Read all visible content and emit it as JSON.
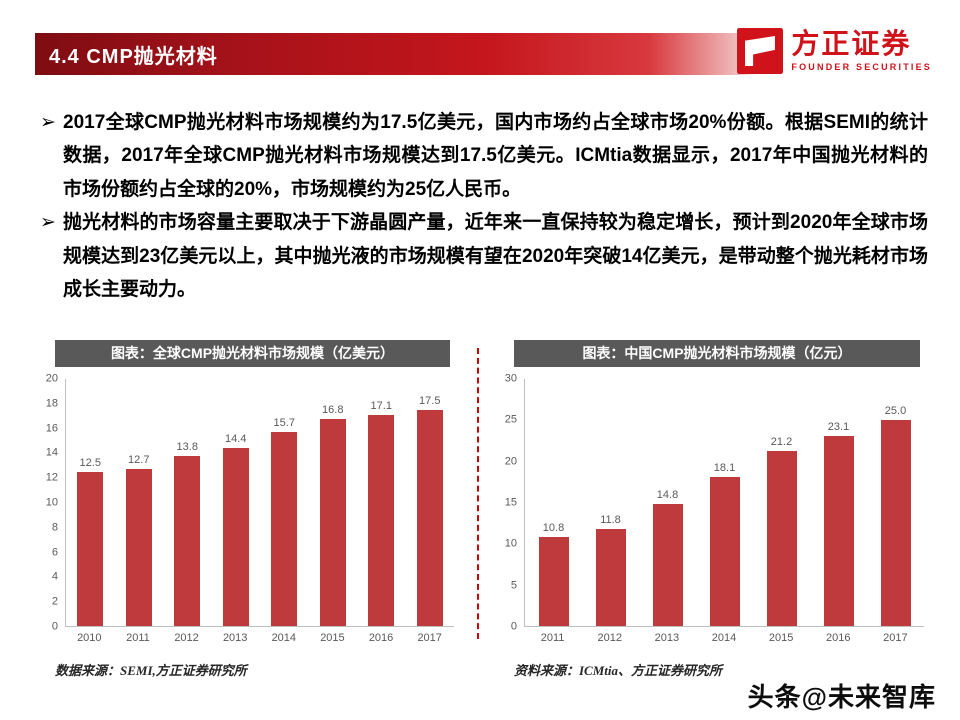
{
  "header": {
    "section_title": "4.4 CMP抛光材料"
  },
  "logo": {
    "brand_cn": "方正证券",
    "brand_en": "FOUNDER SECURITIES"
  },
  "bullet_marker": "➢",
  "bullets": [
    "2017全球CMP抛光材料市场规模约为17.5亿美元，国内市场约占全球市场20%份额。根据SEMI的统计数据，2017年全球CMP抛光材料市场规模达到17.5亿美元。ICMtia数据显示，2017年中国抛光材料的市场份额约占全球的20%，市场规模约为25亿人民币。",
    "抛光材料的市场容量主要取决于下游晶圆产量，近年来一直保持较为稳定增长，预计到2020年全球市场规模达到23亿美元以上，其中抛光液的市场规模有望在2020年突破14亿美元，是带动整个抛光耗材市场成长主要动力。"
  ],
  "chart_data": [
    {
      "type": "bar",
      "title": "图表：全球CMP抛光材料市场规模（亿美元）",
      "categories": [
        "2010",
        "2011",
        "2012",
        "2013",
        "2014",
        "2015",
        "2016",
        "2017"
      ],
      "values": [
        12.5,
        12.7,
        13.8,
        14.4,
        15.7,
        16.8,
        17.1,
        17.5
      ],
      "ylim": [
        0,
        20
      ],
      "ytick_step": 2,
      "grid": false,
      "legend": "none",
      "source": "数据来源：SEMI,方正证券研究所"
    },
    {
      "type": "bar",
      "title": "图表：中国CMP抛光材料市场规模（亿元）",
      "categories": [
        "2011",
        "2012",
        "2013",
        "2014",
        "2015",
        "2016",
        "2017"
      ],
      "values": [
        10.8,
        11.8,
        14.8,
        18.1,
        21.2,
        23.1,
        25.0
      ],
      "ylim": [
        0,
        30
      ],
      "ytick_step": 5,
      "grid": false,
      "legend": "none",
      "source": "资料来源：ICMtia、方正证券研究所"
    }
  ],
  "watermark": "头条@未来智库",
  "colors": {
    "bar": "#bf3a3c",
    "banner_dark": "#7e0d12",
    "banner_main": "#c4161c",
    "brand_red": "#d0121b",
    "chart_title_bg": "#595959",
    "axis_text": "#595959"
  }
}
